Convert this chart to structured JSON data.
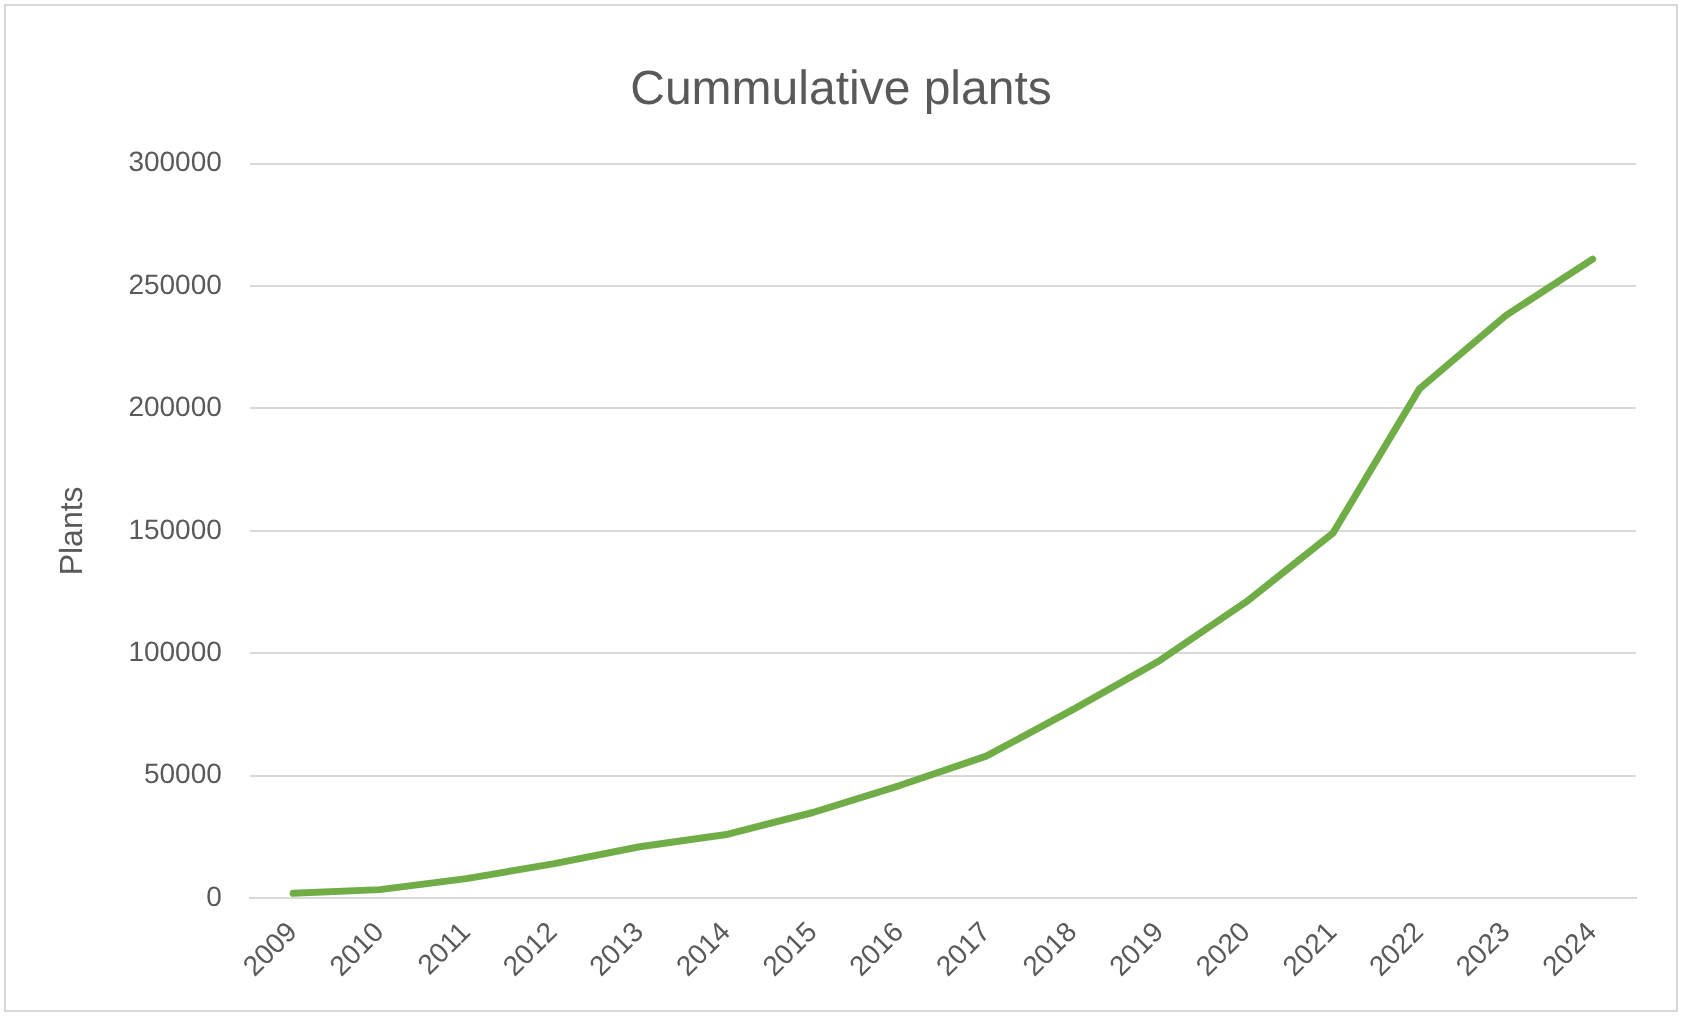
{
  "chart_data": {
    "type": "line",
    "title": "Cummulative plants",
    "ylabel": "Plants",
    "categories": [
      "2009",
      "2010",
      "2011",
      "2012",
      "2013",
      "2014",
      "2015",
      "2016",
      "2017",
      "2018",
      "2019",
      "2020",
      "2021",
      "2022",
      "2023",
      "2024"
    ],
    "series": [
      {
        "color": "#70ad47",
        "values": [
          2000,
          3500,
          8000,
          14000,
          21000,
          26000,
          35000,
          46000,
          58000,
          77000,
          97000,
          121000,
          149000,
          208000,
          238000,
          261000
        ]
      }
    ],
    "ylim": [
      0,
      300000
    ],
    "yticks": [
      0,
      50000,
      100000,
      150000,
      200000,
      250000,
      300000
    ],
    "grid": "y",
    "legend": false,
    "marker": "none",
    "line_style": "solid"
  }
}
